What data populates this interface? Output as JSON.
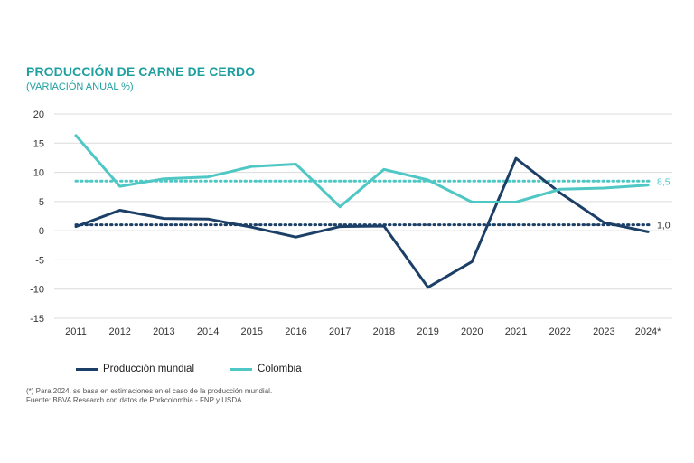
{
  "header": {
    "title": "PRODUCCIÓN DE CARNE DE CERDO",
    "subtitle": "(VARIACIÓN ANUAL %)"
  },
  "chart_data": {
    "type": "line",
    "x": [
      "2011",
      "2012",
      "2013",
      "2014",
      "2015",
      "2016",
      "2017",
      "2018",
      "2019",
      "2020",
      "2021",
      "2022",
      "2023",
      "2024*"
    ],
    "ylim": [
      -15,
      20
    ],
    "yticks": [
      20,
      15,
      10,
      5,
      0,
      -5,
      -10,
      -15
    ],
    "grid": true,
    "legend_position": "bottom-left",
    "series": [
      {
        "name": "Producción mundial",
        "color": "#1b3f66",
        "values": [
          0.7,
          3.5,
          2.1,
          2.0,
          0.6,
          -1.1,
          0.7,
          0.8,
          -9.7,
          -5.3,
          12.4,
          6.5,
          1.4,
          -0.2
        ]
      },
      {
        "name": "Colombia",
        "color": "#4fc7c4",
        "values": [
          16.3,
          7.6,
          8.9,
          9.2,
          11.0,
          11.4,
          4.1,
          10.5,
          8.7,
          4.9,
          4.9,
          7.1,
          7.3,
          7.8
        ]
      }
    ],
    "reference_lines": [
      {
        "value": 8.5,
        "label": "8,5",
        "color": "#4fc7c4"
      },
      {
        "value": 1.0,
        "label": "1,0",
        "color": "#1b3f66"
      }
    ]
  },
  "footer": {
    "note": "(*) Para 2024, se basa en estimaciones en el caso de la producción mundial.",
    "source": "Fuente: BBVA Research con datos de Porkcolombia - FNP y USDA."
  }
}
